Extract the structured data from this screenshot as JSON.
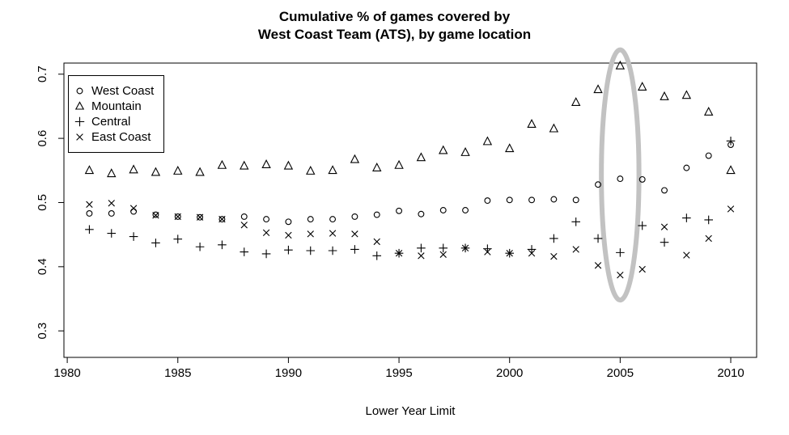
{
  "title": {
    "line1": "Cumulative % of games covered by",
    "line2": "West Coast Team (ATS), by game location"
  },
  "legend": {
    "items": [
      {
        "label": "West Coast",
        "symbol": "circle"
      },
      {
        "label": "Mountain",
        "symbol": "triangle"
      },
      {
        "label": "Central",
        "symbol": "plus"
      },
      {
        "label": "East Coast",
        "symbol": "x"
      }
    ]
  },
  "colors": {
    "points": "#000000",
    "axis": "#000000",
    "highlight_ellipse": "#c2c2c2",
    "background": "#ffffff"
  },
  "chart_data": {
    "type": "scatter",
    "title": "Cumulative % of games covered by West Coast Team (ATS), by game location",
    "xlabel": "Lower Year Limit",
    "ylabel": "",
    "grid": false,
    "legend_position": "top-left",
    "xlim": [
      1979.85,
      2011.17
    ],
    "ylim": [
      0.2587,
      0.7173
    ],
    "x_ticks": [
      1980,
      1985,
      1990,
      1995,
      2000,
      2005,
      2010
    ],
    "y_ticks": [
      "0.3",
      "0.4",
      "0.5",
      "0.6",
      "0.7"
    ],
    "x": [
      1981,
      1982,
      1983,
      1984,
      1985,
      1986,
      1987,
      1988,
      1989,
      1990,
      1991,
      1992,
      1993,
      1994,
      1995,
      1996,
      1997,
      1998,
      1999,
      2000,
      2001,
      2002,
      2003,
      2004,
      2005,
      2006,
      2007,
      2008,
      2009,
      2010
    ],
    "series": [
      {
        "name": "West Coast",
        "symbol": "circle",
        "values": [
          0.483,
          0.483,
          0.486,
          0.481,
          0.478,
          0.477,
          0.474,
          0.478,
          0.474,
          0.47,
          0.474,
          0.474,
          0.478,
          0.481,
          0.487,
          0.482,
          0.488,
          0.488,
          0.503,
          0.504,
          0.504,
          0.505,
          0.504,
          0.528,
          0.537,
          0.536,
          0.519,
          0.554,
          0.573,
          0.59
        ]
      },
      {
        "name": "Mountain",
        "symbol": "triangle",
        "values": [
          0.55,
          0.545,
          0.551,
          0.547,
          0.549,
          0.547,
          0.558,
          0.557,
          0.559,
          0.557,
          0.549,
          0.55,
          0.567,
          0.554,
          0.558,
          0.57,
          0.581,
          0.578,
          0.595,
          0.584,
          0.622,
          0.615,
          0.656,
          0.676,
          0.713,
          0.68,
          0.665,
          0.667,
          0.641,
          0.55
        ]
      },
      {
        "name": "Central",
        "symbol": "plus",
        "values": [
          0.458,
          0.452,
          0.447,
          0.437,
          0.443,
          0.431,
          0.434,
          0.423,
          0.42,
          0.426,
          0.425,
          0.425,
          0.427,
          0.417,
          0.421,
          0.429,
          0.429,
          0.429,
          0.428,
          0.421,
          0.427,
          0.444,
          0.47,
          0.444,
          0.422,
          0.464,
          0.438,
          0.476,
          0.473,
          0.596
        ]
      },
      {
        "name": "East Coast",
        "symbol": "x",
        "values": [
          0.497,
          0.499,
          0.491,
          0.48,
          0.478,
          0.477,
          0.474,
          0.465,
          0.453,
          0.449,
          0.451,
          0.452,
          0.451,
          0.439,
          0.421,
          0.417,
          0.419,
          0.429,
          0.423,
          0.421,
          0.421,
          0.416,
          0.427,
          0.402,
          0.387,
          0.396,
          0.462,
          0.418,
          0.444,
          0.49
        ]
      }
    ],
    "annotations": [
      {
        "type": "ellipse",
        "x_year": 2005,
        "y_value": 0.543,
        "rx_years": 0.85,
        "ry_value": 0.195,
        "color": "#c2c2c2",
        "stroke_width": 6,
        "meaning": "highlights the 2005 lower-year-limit points"
      }
    ]
  }
}
